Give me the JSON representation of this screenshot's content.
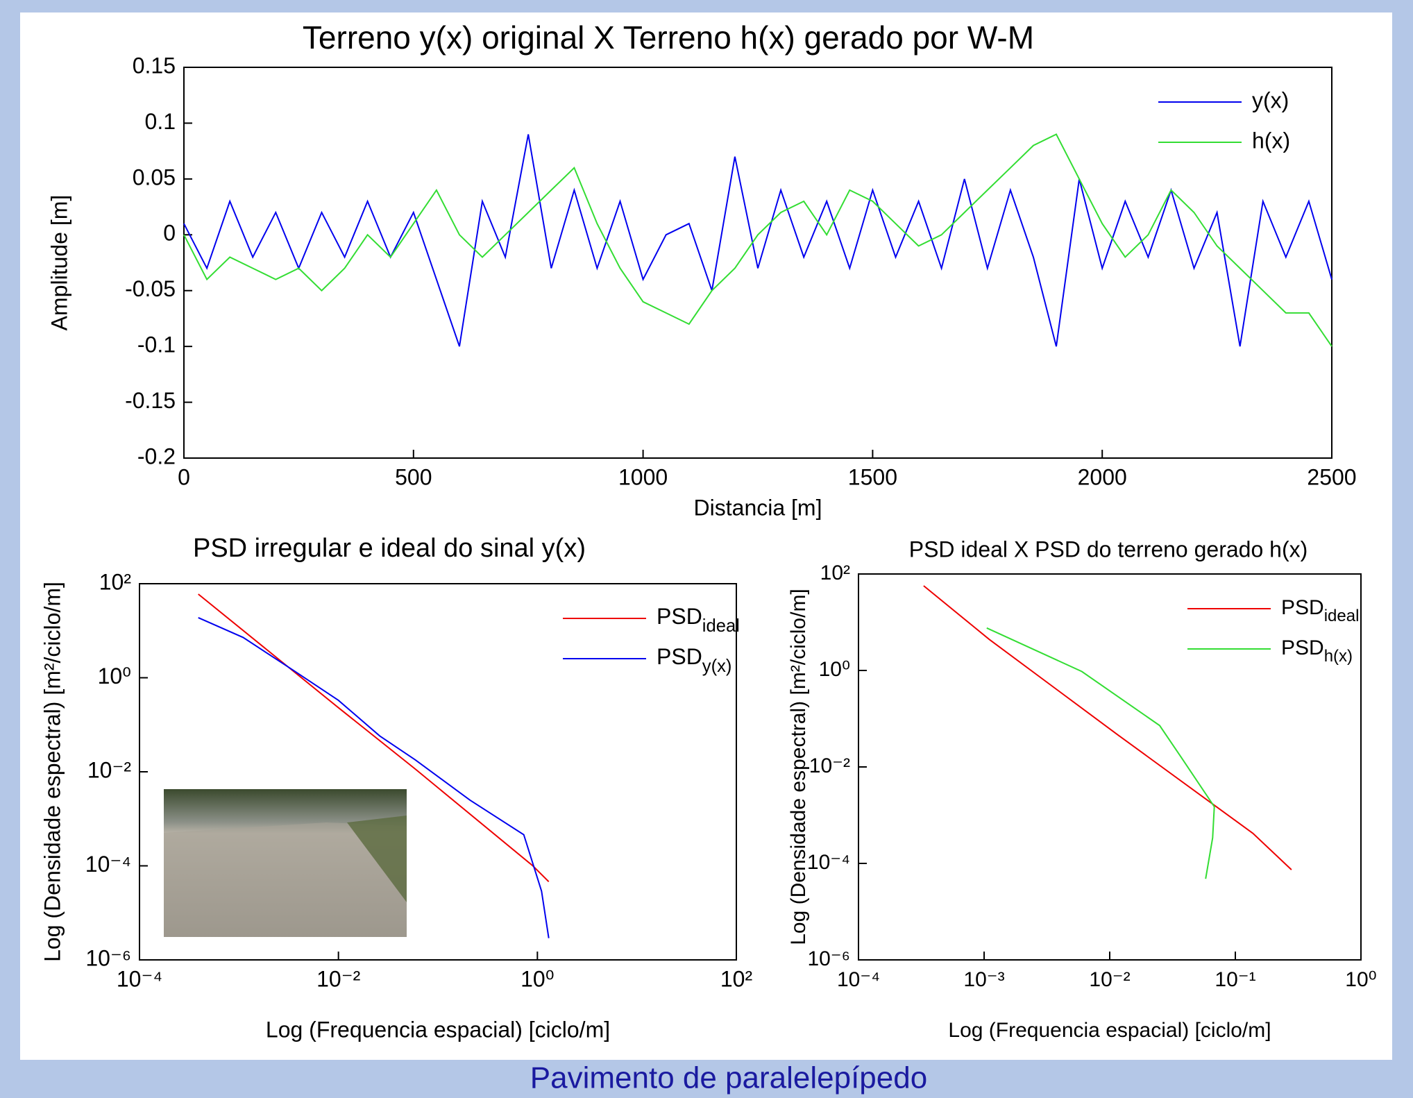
{
  "chart_data": [
    {
      "type": "line",
      "title": "Terreno y(x) original X  Terreno h(x) gerado por W-M",
      "xlabel": "Distancia [m]",
      "ylabel": "Amplitude [m]",
      "x": [
        0,
        50,
        100,
        150,
        200,
        250,
        300,
        350,
        400,
        450,
        500,
        550,
        600,
        650,
        700,
        750,
        800,
        850,
        900,
        950,
        1000,
        1050,
        1100,
        1150,
        1200,
        1250,
        1300,
        1350,
        1400,
        1450,
        1500,
        1550,
        1600,
        1650,
        1700,
        1750,
        1800,
        1850,
        1900,
        1950,
        2000,
        2050,
        2100,
        2150,
        2200,
        2250,
        2300,
        2350,
        2400,
        2450,
        2500
      ],
      "series": [
        {
          "name": "y(x)",
          "color": "#0000ee",
          "values": [
            0.01,
            -0.03,
            0.03,
            -0.02,
            0.02,
            -0.03,
            0.02,
            -0.02,
            0.03,
            -0.02,
            0.02,
            -0.04,
            -0.1,
            0.03,
            -0.02,
            0.09,
            -0.03,
            0.04,
            -0.03,
            0.03,
            -0.04,
            0.0,
            0.01,
            -0.05,
            0.07,
            -0.03,
            0.04,
            -0.02,
            0.03,
            -0.03,
            0.04,
            -0.02,
            0.03,
            -0.03,
            0.05,
            -0.03,
            0.04,
            -0.02,
            -0.1,
            0.05,
            -0.03,
            0.03,
            -0.02,
            0.04,
            -0.03,
            0.02,
            -0.1,
            0.03,
            -0.02,
            0.03,
            -0.04
          ]
        },
        {
          "name": "h(x)",
          "color": "#33dd33",
          "values": [
            0.0,
            -0.04,
            -0.02,
            -0.03,
            -0.04,
            -0.03,
            -0.05,
            -0.03,
            0.0,
            -0.02,
            0.01,
            0.04,
            0.0,
            -0.02,
            0.0,
            0.02,
            0.04,
            0.06,
            0.01,
            -0.03,
            -0.06,
            -0.07,
            -0.08,
            -0.05,
            -0.03,
            0.0,
            0.02,
            0.03,
            0.0,
            0.04,
            0.03,
            0.01,
            -0.01,
            0.0,
            0.02,
            0.04,
            0.06,
            0.08,
            0.09,
            0.05,
            0.01,
            -0.02,
            0.0,
            0.04,
            0.02,
            -0.01,
            -0.03,
            -0.05,
            -0.07,
            -0.07,
            -0.1
          ]
        }
      ],
      "xlim": [
        0,
        2500
      ],
      "xticks": [
        0,
        500,
        1000,
        1500,
        2000,
        2500
      ],
      "ylim": [
        -0.2,
        0.15
      ],
      "yticks": [
        -0.2,
        -0.15,
        -0.1,
        -0.05,
        0,
        0.05,
        0.1,
        0.15
      ],
      "legend": "upper right"
    },
    {
      "type": "line",
      "title": "PSD irregular e ideal do sinal y(x)",
      "xlabel": "Log (Frequencia espacial) [ciclo/m]",
      "ylabel": "Log (Densidade espectral) [m²/ciclo/m]",
      "xscale": "log",
      "yscale": "log",
      "series": [
        {
          "name": "PSDideal",
          "color": "#ee0000",
          "x": [
            0.00039,
            0.01,
            0.059,
            0.9,
            1.3
          ],
          "values": [
            60,
            0.23,
            0.0115,
            0.0001,
            4.6e-05
          ]
        },
        {
          "name": "PSDy(x)",
          "color": "#0000ee",
          "x": [
            0.00039,
            0.0011,
            0.0035,
            0.01,
            0.026,
            0.059,
            0.21,
            0.73,
            1.1,
            1.3
          ],
          "values": [
            19,
            7.2,
            1.45,
            0.33,
            0.058,
            0.018,
            0.0025,
            0.00046,
            2.9e-05,
            2.9e-06
          ]
        }
      ],
      "xlim": [
        0.0001,
        100
      ],
      "xticks": [
        {
          "value": 0.0001,
          "label": "10⁻⁴"
        },
        {
          "value": 0.01,
          "label": "10⁻²"
        },
        {
          "value": 1,
          "label": "10⁰"
        },
        {
          "value": 100,
          "label": "10²"
        }
      ],
      "ylim": [
        1e-06,
        100
      ],
      "yticks": [
        {
          "value": 1e-06,
          "label": "10⁻⁶"
        },
        {
          "value": 0.0001,
          "label": "10⁻⁴"
        },
        {
          "value": 0.01,
          "label": "10⁻²"
        },
        {
          "value": 1,
          "label": "10⁰"
        },
        {
          "value": 100,
          "label": "10²"
        }
      ],
      "legend": "upper right"
    },
    {
      "type": "line",
      "title": "PSD ideal X  PSD do terreno gerado h(x)",
      "xlabel": "Log (Frequencia espacial) [ciclo/m]",
      "ylabel": "Log (Densidade espectral) [m²/ciclo/m]",
      "xscale": "log",
      "yscale": "log",
      "series": [
        {
          "name": "PSDideal",
          "color": "#ee0000",
          "x": [
            0.00033,
            0.0011,
            0.0115,
            0.138,
            0.28
          ],
          "values": [
            57,
            4.4,
            0.047,
            0.00042,
            7.4e-05
          ]
        },
        {
          "name": "PSDh(x)",
          "color": "#33dd33",
          "x": [
            0.00105,
            0.006,
            0.025,
            0.037,
            0.068,
            0.066,
            0.058
          ],
          "values": [
            7.6,
            0.95,
            0.072,
            0.016,
            0.0015,
            0.00034,
            4.8e-05
          ]
        }
      ],
      "xlim": [
        0.0001,
        1
      ],
      "xticks": [
        {
          "value": 0.0001,
          "label": "10⁻⁴"
        },
        {
          "value": 0.001,
          "label": "10⁻³"
        },
        {
          "value": 0.01,
          "label": "10⁻²"
        },
        {
          "value": 0.1,
          "label": "10⁻¹"
        },
        {
          "value": 1,
          "label": "10⁰"
        }
      ],
      "ylim": [
        1e-06,
        100
      ],
      "yticks": [
        {
          "value": 1e-06,
          "label": "10⁻⁶"
        },
        {
          "value": 0.0001,
          "label": "10⁻⁴"
        },
        {
          "value": 0.01,
          "label": "10⁻²"
        },
        {
          "value": 1,
          "label": "10⁰"
        },
        {
          "value": 100,
          "label": "10²"
        }
      ],
      "legend": "upper right"
    }
  ],
  "caption": "Pavimento de paralelepípedo"
}
